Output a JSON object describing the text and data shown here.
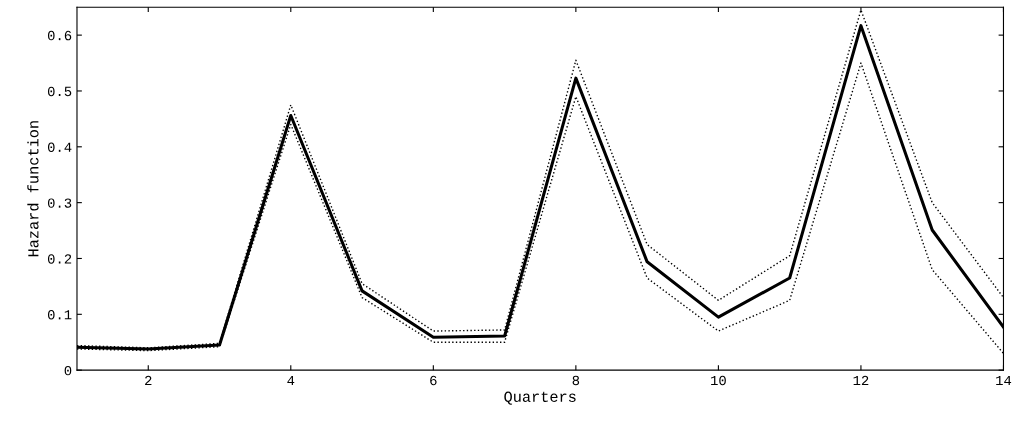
{
  "chart_data": {
    "type": "line",
    "xlabel": "Quarters",
    "ylabel": "Hazard function",
    "x": [
      1,
      2,
      3,
      4,
      5,
      6,
      7,
      8,
      9,
      10,
      11,
      12,
      13,
      14
    ],
    "series": [
      {
        "color": "#000000",
        "values": [
          0.041,
          0.038,
          0.045,
          0.456,
          0.142,
          0.059,
          0.061,
          0.523,
          0.194,
          0.095,
          0.165,
          0.617,
          0.251,
          0.077
        ]
      },
      {
        "color": "#000000",
        "line_style": "dotted",
        "values": [
          0.038,
          0.035,
          0.042,
          0.44,
          0.13,
          0.05,
          0.05,
          0.49,
          0.165,
          0.07,
          0.125,
          0.55,
          0.18,
          0.03
        ]
      },
      {
        "color": "#000000",
        "line_style": "dotted",
        "values": [
          0.044,
          0.04,
          0.048,
          0.475,
          0.155,
          0.07,
          0.072,
          0.555,
          0.225,
          0.125,
          0.205,
          0.645,
          0.3,
          0.13
        ]
      }
    ],
    "xlim": [
      1,
      14
    ],
    "xticks": [
      2,
      4,
      6,
      8,
      10,
      12,
      14
    ],
    "ylim": [
      0,
      0.65
    ],
    "yticks": [
      0,
      0.1,
      0.2,
      0.3,
      0.4,
      0.5,
      0.6
    ],
    "grid": false,
    "legend": false,
    "line_style": "solid",
    "marker": "none"
  }
}
